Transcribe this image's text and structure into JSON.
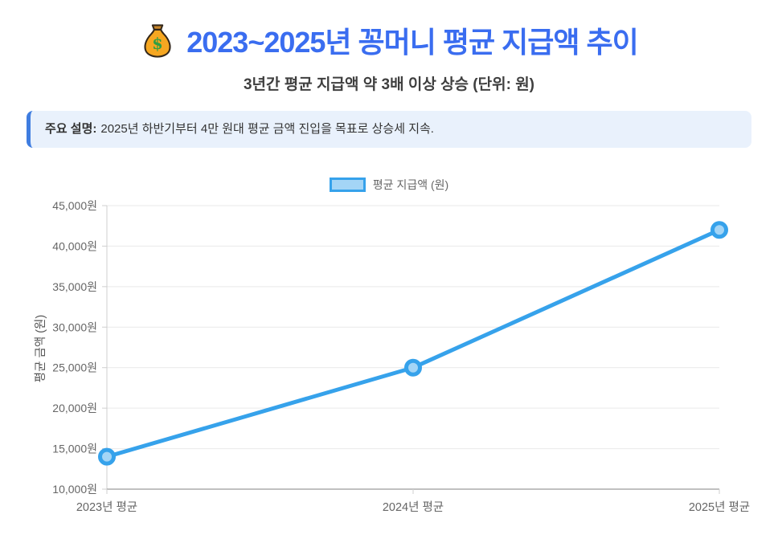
{
  "header": {
    "icon": "money-bag",
    "title": "2023~2025년 꽁머니 평균 지급액 추이",
    "subtitle": "3년간 평균 지급액 약 3배 이상 상승 (단위: 원)"
  },
  "note": {
    "label": "주요 설명:",
    "text": "2025년 하반기부터 4만 원대 평균 금액 진입을 목표로 상승세 지속."
  },
  "chart_data": {
    "type": "line",
    "categories": [
      "2023년 평균",
      "2024년 평균",
      "2025년 평균"
    ],
    "series": [
      {
        "name": "평균 지급액 (원)",
        "values": [
          14000,
          25000,
          42000
        ]
      }
    ],
    "ylabel": "평균 금액 (원)",
    "xlabel": "",
    "ylim": [
      10000,
      45000
    ],
    "ytick_step": 5000,
    "ytick_suffix": "원",
    "legend_position": "top-center",
    "grid": "horizontal-only",
    "colors": {
      "line": "#36a2eb",
      "point_fill": "#a4d5f6",
      "grid": "#e9e9e9",
      "axis": "#cfcfcf",
      "axis_bottom": "#ababab",
      "tick_text": "#666666",
      "axis_title_text": "#555555"
    }
  },
  "theme": {
    "title_color": "#3a6df0",
    "subtitle_color": "#3f3f3f",
    "note_bg": "#e9f1fc",
    "note_border": "#3f7de0",
    "note_text": "#333333"
  }
}
